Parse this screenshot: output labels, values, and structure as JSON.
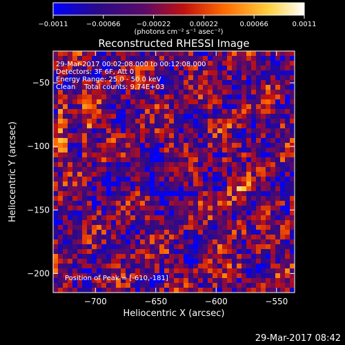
{
  "chart_data": {
    "type": "heatmap",
    "title": "Reconstructed RHESSI Image",
    "xlabel": "Heliocentric X (arcsec)",
    "ylabel": "Heliocentric Y (arcsec)",
    "xlim": [
      -735,
      -535
    ],
    "ylim": [
      -215,
      -25
    ],
    "x_ticks": [
      -700,
      -650,
      -600,
      -550
    ],
    "x_tick_labels": [
      "−700",
      "−650",
      "−600",
      "−550"
    ],
    "y_ticks": [
      -50,
      -100,
      -150,
      -200
    ],
    "y_tick_labels": [
      "−50",
      "−100",
      "−150",
      "−200"
    ],
    "colorbar": {
      "min": -0.0011,
      "max": 0.0011,
      "tick_labels": [
        "−0.0011",
        "−0.00066",
        "−0.00022",
        "0.00022",
        "0.00066",
        "0.0011"
      ],
      "unit_label": "(photons cm⁻² s⁻¹ asec⁻²)",
      "colormap": [
        "#0000ff",
        "#2a0a88",
        "#5a0a6a",
        "#c01010",
        "#ff6a00",
        "#ffd040",
        "#ffffff"
      ]
    },
    "annotations": [
      "29-Mar-2017 00:02:08.000 to 00:12:08.000",
      "Detectors: 3F 6F, Att 0",
      "Energy Range: 25.0 - 50.0 keV",
      "Clean    Total counts: 9.74E+03"
    ],
    "peak_label": "Position of Peak = [-610,-181]",
    "peak_position": [
      -610,
      -181
    ],
    "grid": false
  },
  "footer": {
    "timestamp": "29-Mar-2017 08:42"
  }
}
